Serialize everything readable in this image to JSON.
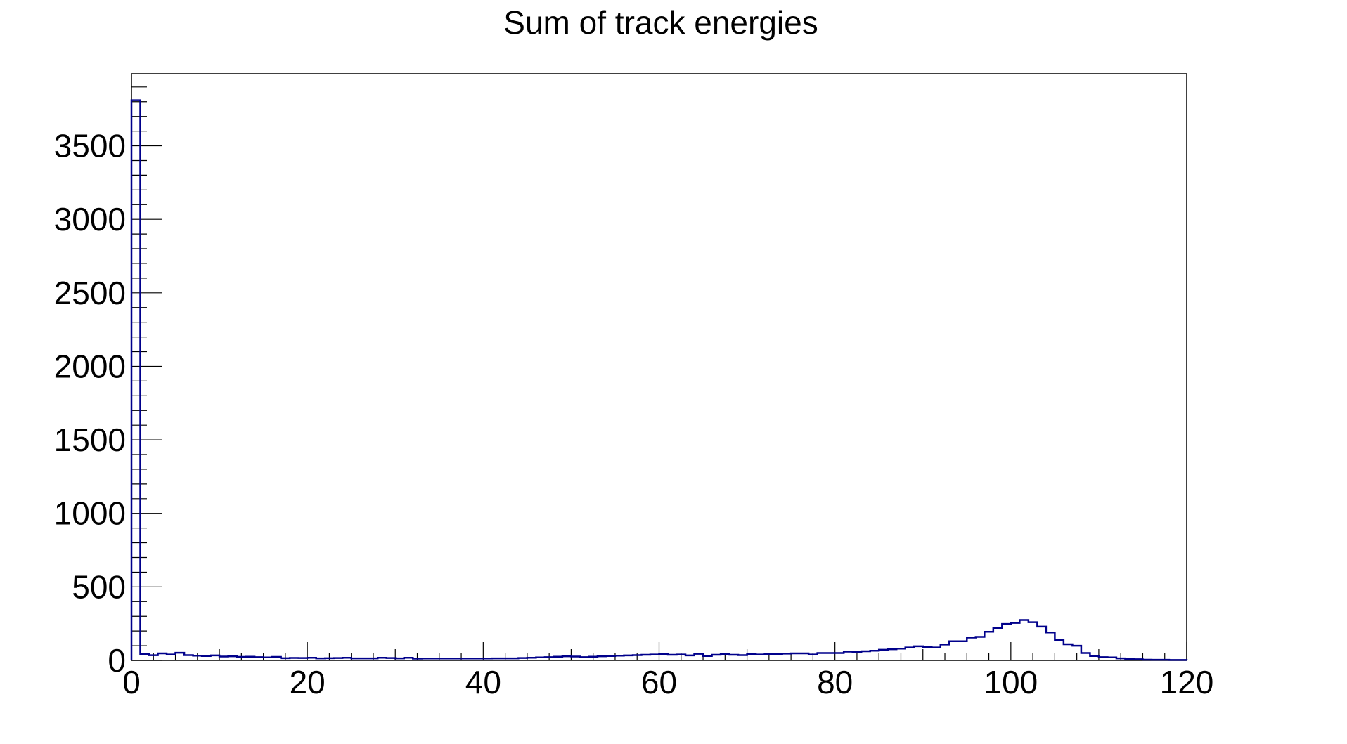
{
  "colors": {
    "line": "#00008b",
    "axis": "#000000",
    "background": "#ffffff"
  },
  "chart_data": {
    "type": "histogram",
    "title": "Sum of track energies",
    "xlabel": "",
    "ylabel": "",
    "xlim": [
      0,
      120
    ],
    "ylim": [
      0,
      3990
    ],
    "grid": false,
    "legend": "none",
    "x_ticks": [
      "0",
      "20",
      "40",
      "60",
      "80",
      "100",
      "120"
    ],
    "y_ticks": [
      "0",
      "500",
      "1000",
      "1500",
      "2000",
      "2500",
      "3000",
      "3500"
    ],
    "x_tick_values": [
      0,
      20,
      40,
      60,
      80,
      100,
      120
    ],
    "y_tick_values": [
      0,
      500,
      1000,
      1500,
      2000,
      2500,
      3000,
      3500
    ],
    "bin_width": 1,
    "values": [
      3810,
      42,
      35,
      48,
      40,
      52,
      36,
      32,
      30,
      34,
      26,
      28,
      24,
      25,
      22,
      20,
      24,
      15,
      17,
      16,
      18,
      14,
      15,
      16,
      18,
      14,
      14,
      14,
      18,
      16,
      14,
      18,
      12,
      13,
      13,
      13,
      13,
      13,
      13,
      13,
      13,
      14,
      14,
      14,
      16,
      18,
      20,
      22,
      25,
      28,
      26,
      22,
      25,
      28,
      30,
      32,
      34,
      36,
      38,
      40,
      42,
      38,
      40,
      34,
      45,
      30,
      38,
      44,
      38,
      36,
      42,
      40,
      42,
      44,
      46,
      48,
      48,
      40,
      50,
      50,
      50,
      60,
      56,
      62,
      66,
      72,
      76,
      80,
      88,
      96,
      90,
      88,
      108,
      130,
      130,
      155,
      160,
      195,
      220,
      248,
      255,
      275,
      260,
      230,
      190,
      140,
      110,
      100,
      50,
      30,
      22,
      20,
      14,
      10,
      8,
      5,
      4,
      4,
      3,
      3
    ]
  }
}
